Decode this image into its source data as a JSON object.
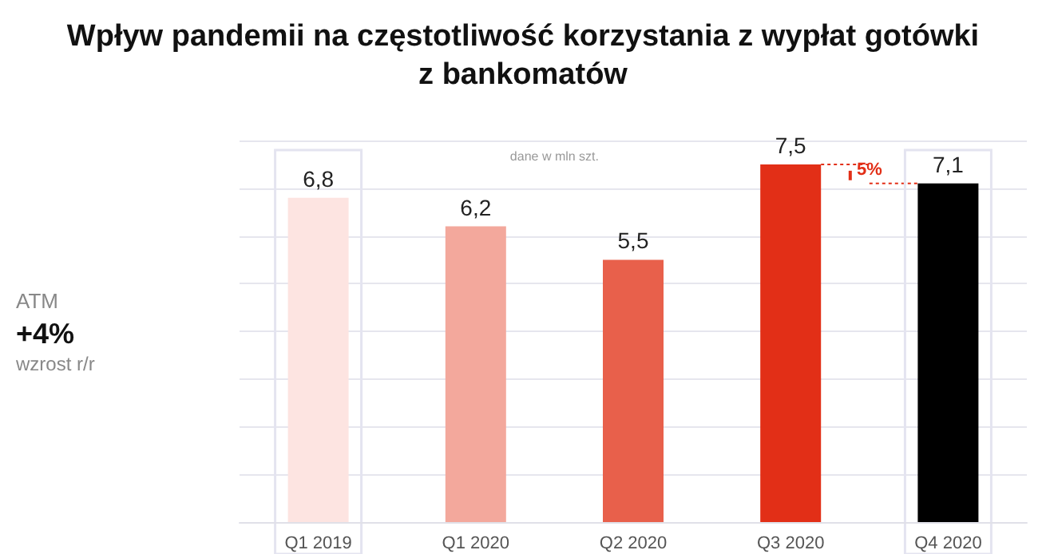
{
  "chart_data": {
    "type": "bar",
    "title": "Wpływ pandemii na częstotliwość korzystania z wypłat gotówki\nz bankomatów",
    "categories": [
      "Q1 2019",
      "Q1 2020",
      "Q2 2020",
      "Q3 2020",
      "Q4 2020"
    ],
    "values": [
      6.8,
      6.2,
      5.5,
      7.5,
      7.1
    ],
    "colors": [
      "#fde4e1",
      "#f3a89c",
      "#e8604b",
      "#e22f17",
      "#000000"
    ],
    "value_labels": [
      "6,8",
      "6,2",
      "5,5",
      "7,5",
      "7,1"
    ],
    "grid": "y",
    "tick_labels": "x",
    "annotations": [
      "dane w mln szt.",
      "ATM",
      "+4%",
      "wzrost r/r",
      "5%"
    ]
  }
}
